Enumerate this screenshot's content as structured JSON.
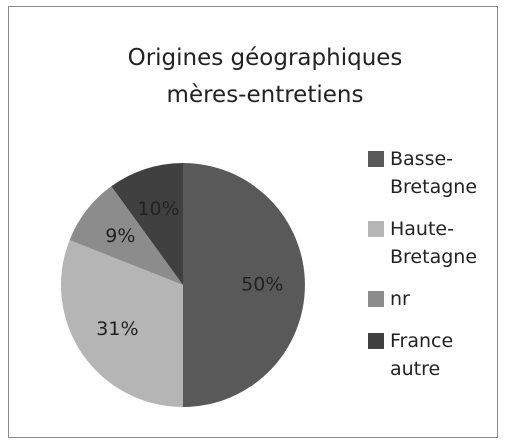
{
  "chart_data": {
    "type": "pie",
    "title": "Origines géographiques mères-entretiens",
    "categories": [
      "Basse-Bretagne",
      "Haute-Bretagne",
      "nr",
      "France autre"
    ],
    "values": [
      50,
      31,
      9,
      10
    ],
    "value_labels": [
      "50%",
      "31%",
      "9%",
      "10%"
    ],
    "colors": [
      "#595959",
      "#b5b5b5",
      "#8c8c8c",
      "#404040"
    ],
    "legend": "right"
  }
}
